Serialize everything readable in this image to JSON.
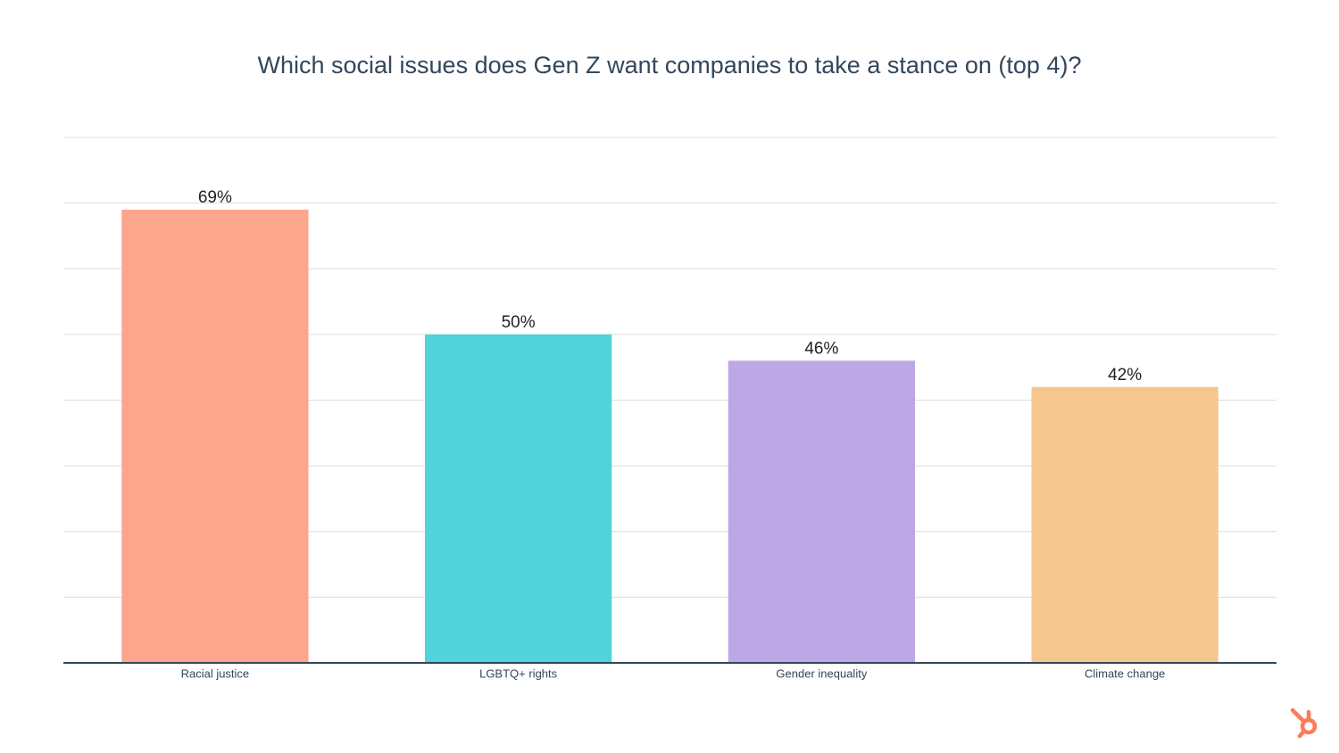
{
  "chart_data": {
    "type": "bar",
    "title": "Which social issues does Gen Z want companies to take a stance on (top 4)?",
    "categories": [
      "Racial justice",
      "LGBTQ+ rights",
      "Gender inequality",
      "Climate change"
    ],
    "values": [
      69,
      50,
      46,
      42
    ],
    "value_labels": [
      "69%",
      "50%",
      "46%",
      "42%"
    ],
    "colors": [
      "#fea58e",
      "#51d3d9",
      "#bea7e5",
      "#f5c78e"
    ],
    "ylim": [
      0,
      80
    ],
    "yticks": [
      0,
      10,
      20,
      30,
      40,
      50,
      60,
      70,
      80
    ],
    "grid": true
  }
}
